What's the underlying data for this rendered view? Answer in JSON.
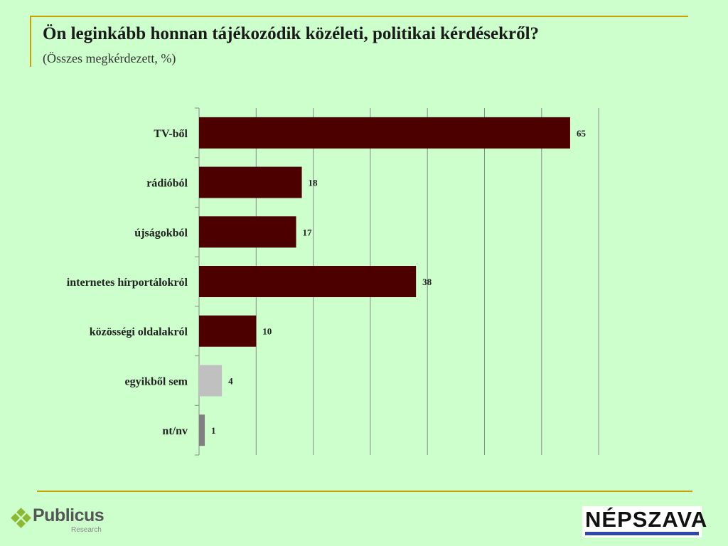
{
  "title": "Ön leginkább honnan tájékozódik közéleti, politikai kérdésekről?",
  "subtitle": "(Összes megkérdezett, %)",
  "chart_data": {
    "type": "bar",
    "orientation": "horizontal",
    "categories": [
      "TV-ből",
      "rádióból",
      "újságokból",
      "internetes hírportálokról",
      "közösségi oldalakról",
      "egyikből sem",
      "nt/nv"
    ],
    "values": [
      65,
      18,
      17,
      38,
      10,
      4,
      1
    ],
    "data_labels": [
      "65",
      "18",
      "17",
      "38",
      "10",
      "4",
      "1"
    ],
    "bar_colors": [
      "#4d0000",
      "#4d0000",
      "#4d0000",
      "#4d0000",
      "#4d0000",
      "#c0c0c0",
      "#808080"
    ],
    "xlim": [
      0,
      70
    ],
    "grid": true,
    "xlabel": "",
    "ylabel": ""
  },
  "logos": {
    "left": {
      "name": "Publicus",
      "sub": "Research"
    },
    "right": {
      "name": "NÉPSZAVA"
    }
  }
}
